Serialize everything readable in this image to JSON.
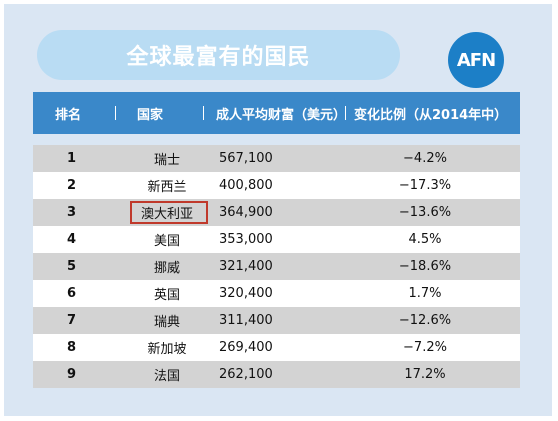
{
  "title": "全球最富有的国民",
  "logo_text": "AFN",
  "header": {
    "rank": "排名",
    "country": "国家",
    "wealth": "成人平均财富（美元）",
    "change": "变化比例（从2014年中）"
  },
  "rows": [
    {
      "rank": "1",
      "country": "瑞士",
      "wealth": "567,100",
      "change": "−4.2%"
    },
    {
      "rank": "2",
      "country": "新西兰",
      "wealth": "400,800",
      "change": "−17.3%"
    },
    {
      "rank": "3",
      "country": "澳大利亚",
      "wealth": "364,900",
      "change": "−13.6%"
    },
    {
      "rank": "4",
      "country": "美国",
      "wealth": "353,000",
      "change": "4.5%"
    },
    {
      "rank": "5",
      "country": "挪威",
      "wealth": "321,400",
      "change": "−18.6%"
    },
    {
      "rank": "6",
      "country": "英国",
      "wealth": "320,400",
      "change": "1.7%"
    },
    {
      "rank": "7",
      "country": "瑞典",
      "wealth": "311,400",
      "change": "−12.6%"
    },
    {
      "rank": "8",
      "country": "新加坡",
      "wealth": "269,400",
      "change": "−7.2%"
    },
    {
      "rank": "9",
      "country": "法国",
      "wealth": "262,100",
      "change": "17.2%"
    }
  ],
  "highlight_color": "#c0392b",
  "header_color": "#3a88c9"
}
